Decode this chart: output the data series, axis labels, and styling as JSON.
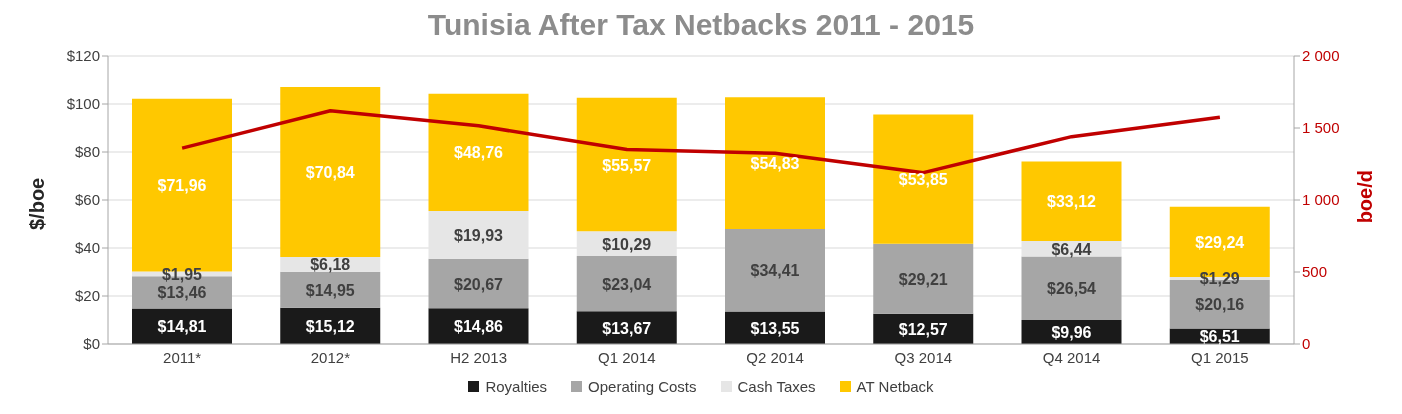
{
  "chart_data": {
    "type": "bar",
    "title": "Tunisia After Tax Netbacks 2011 - 2015",
    "ylabel": "$/boe",
    "y2label": "boe/d",
    "categories": [
      "2011*",
      "2012*",
      "H2 2013",
      "Q1 2014",
      "Q2 2014",
      "Q3 2014",
      "Q4 2014",
      "Q1 2015"
    ],
    "stacked": true,
    "series": [
      {
        "name": "Royalties",
        "color": "#1a1a1a",
        "values": [
          14.81,
          15.12,
          14.86,
          13.67,
          13.55,
          12.57,
          9.96,
          6.51
        ],
        "value_labels": [
          "$14,81",
          "$15,12",
          "$14,86",
          "$13,67",
          "$13,55",
          "$12,57",
          "$9,96",
          "$6,51"
        ]
      },
      {
        "name": "Operating Costs",
        "color": "#a6a6a6",
        "values": [
          13.46,
          14.95,
          20.67,
          23.04,
          34.41,
          29.21,
          26.54,
          20.16
        ],
        "value_labels": [
          "$13,46",
          "$14,95",
          "$20,67",
          "$23,04",
          "$34,41",
          "$29,21",
          "$26,54",
          "$20,16"
        ]
      },
      {
        "name": "Cash Taxes",
        "color": "#e6e6e6",
        "values": [
          1.95,
          6.18,
          19.93,
          10.29,
          null,
          null,
          6.44,
          1.29
        ],
        "value_labels": [
          "$1,95",
          "$6,18",
          "$19,93",
          "$10,29",
          null,
          null,
          "$6,44",
          "$1,29"
        ]
      },
      {
        "name": "AT Netback",
        "color": "#ffc800",
        "values": [
          71.96,
          70.84,
          48.76,
          55.57,
          54.83,
          53.85,
          33.12,
          29.24
        ],
        "value_labels": [
          "$71,96",
          "$70,84",
          "$48,76",
          "$55,57",
          "$54,83",
          "$53,85",
          "$33,12",
          "$29,24"
        ]
      },
      {
        "type": "line",
        "axis": "y2",
        "color": "#c00000",
        "values": [
          1360,
          1620,
          1515,
          1350,
          1325,
          1190,
          1440,
          1575
        ]
      }
    ],
    "ylim": [
      0,
      120
    ],
    "yticks": [
      {
        "value": 0,
        "label": "$0"
      },
      {
        "value": 20,
        "label": "$20"
      },
      {
        "value": 40,
        "label": "$40"
      },
      {
        "value": 60,
        "label": "$60"
      },
      {
        "value": 80,
        "label": "$80"
      },
      {
        "value": 100,
        "label": "$100"
      },
      {
        "value": 120,
        "label": "$120"
      }
    ],
    "y2lim": [
      0,
      2000
    ],
    "y2ticks": [
      0,
      500,
      {
        "value": 1000,
        "label": "1 000"
      },
      {
        "value": 1500,
        "label": "1 500"
      },
      {
        "value": 2000,
        "label": "2 000"
      }
    ],
    "grid": "y",
    "legend": "bottom"
  }
}
